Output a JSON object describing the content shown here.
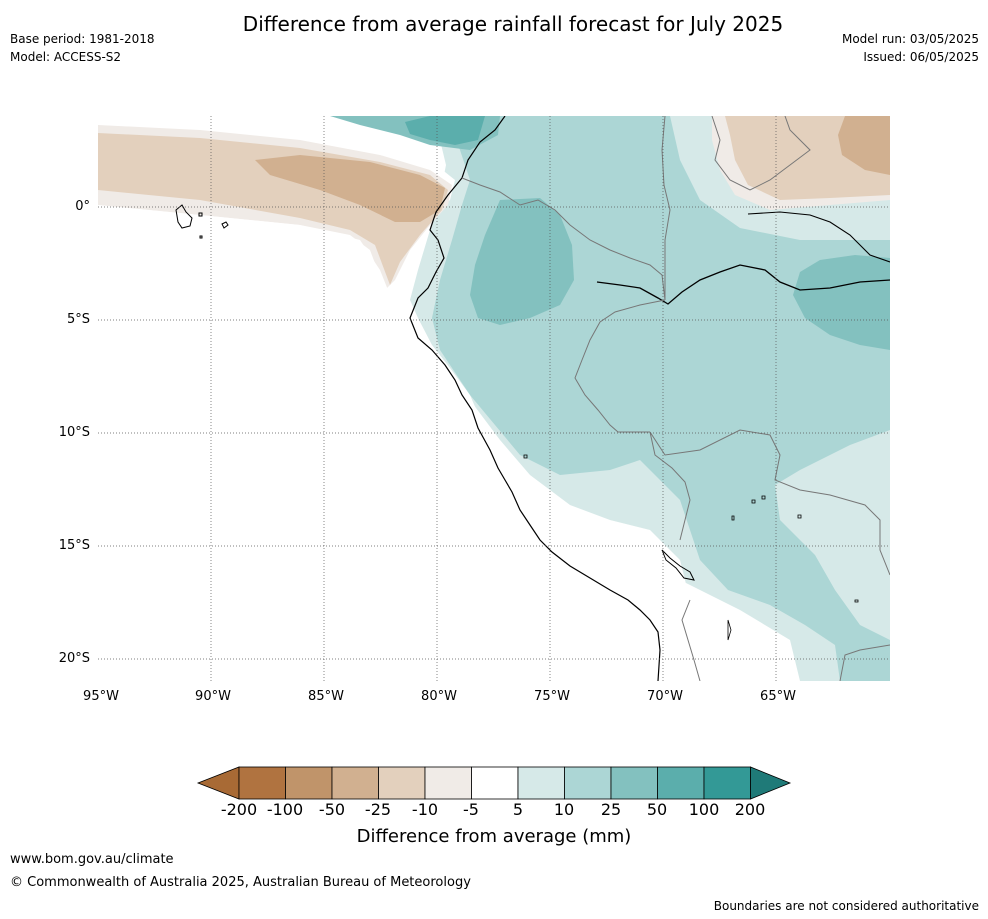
{
  "header": {
    "title": "Difference from average rainfall forecast for July 2025",
    "base_period": "Base period: 1981-2018",
    "model": "Model: ACCESS-S2",
    "model_run": "Model run: 03/05/2025",
    "issued": "Issued: 06/05/2025"
  },
  "map": {
    "region": "South America – Peru, Ecuador, Colombia, Bolivia, Brazil",
    "lon_labels": [
      "95°W",
      "90°W",
      "85°W",
      "80°W",
      "75°W",
      "70°W",
      "65°W"
    ],
    "lat_labels": [
      "0°",
      "5°S",
      "10°S",
      "15°S",
      "20°S"
    ],
    "lon_range": [
      -95,
      -60
    ],
    "lat_range": [
      -21,
      4
    ],
    "gridlines": true
  },
  "colorbar": {
    "title": "Difference from average (mm)",
    "ticks": [
      "-200",
      "-100",
      "-50",
      "-25",
      "-10",
      "-5",
      "5",
      "10",
      "25",
      "50",
      "100",
      "200"
    ],
    "colors": [
      "#a86a35",
      "#b07340",
      "#c0946a",
      "#d1b090",
      "#e3d0bd",
      "#f0ebe7",
      "#ffffff",
      "#d6e9e8",
      "#acd6d5",
      "#83c1bf",
      "#5baeac",
      "#339996",
      "#1f7a78"
    ]
  },
  "footer": {
    "url": "www.bom.gov.au/climate",
    "copyright": "© Commonwealth of Australia 2025, Australian Bureau of Meteorology",
    "disclaimer": "Boundaries are not considered authoritative"
  }
}
